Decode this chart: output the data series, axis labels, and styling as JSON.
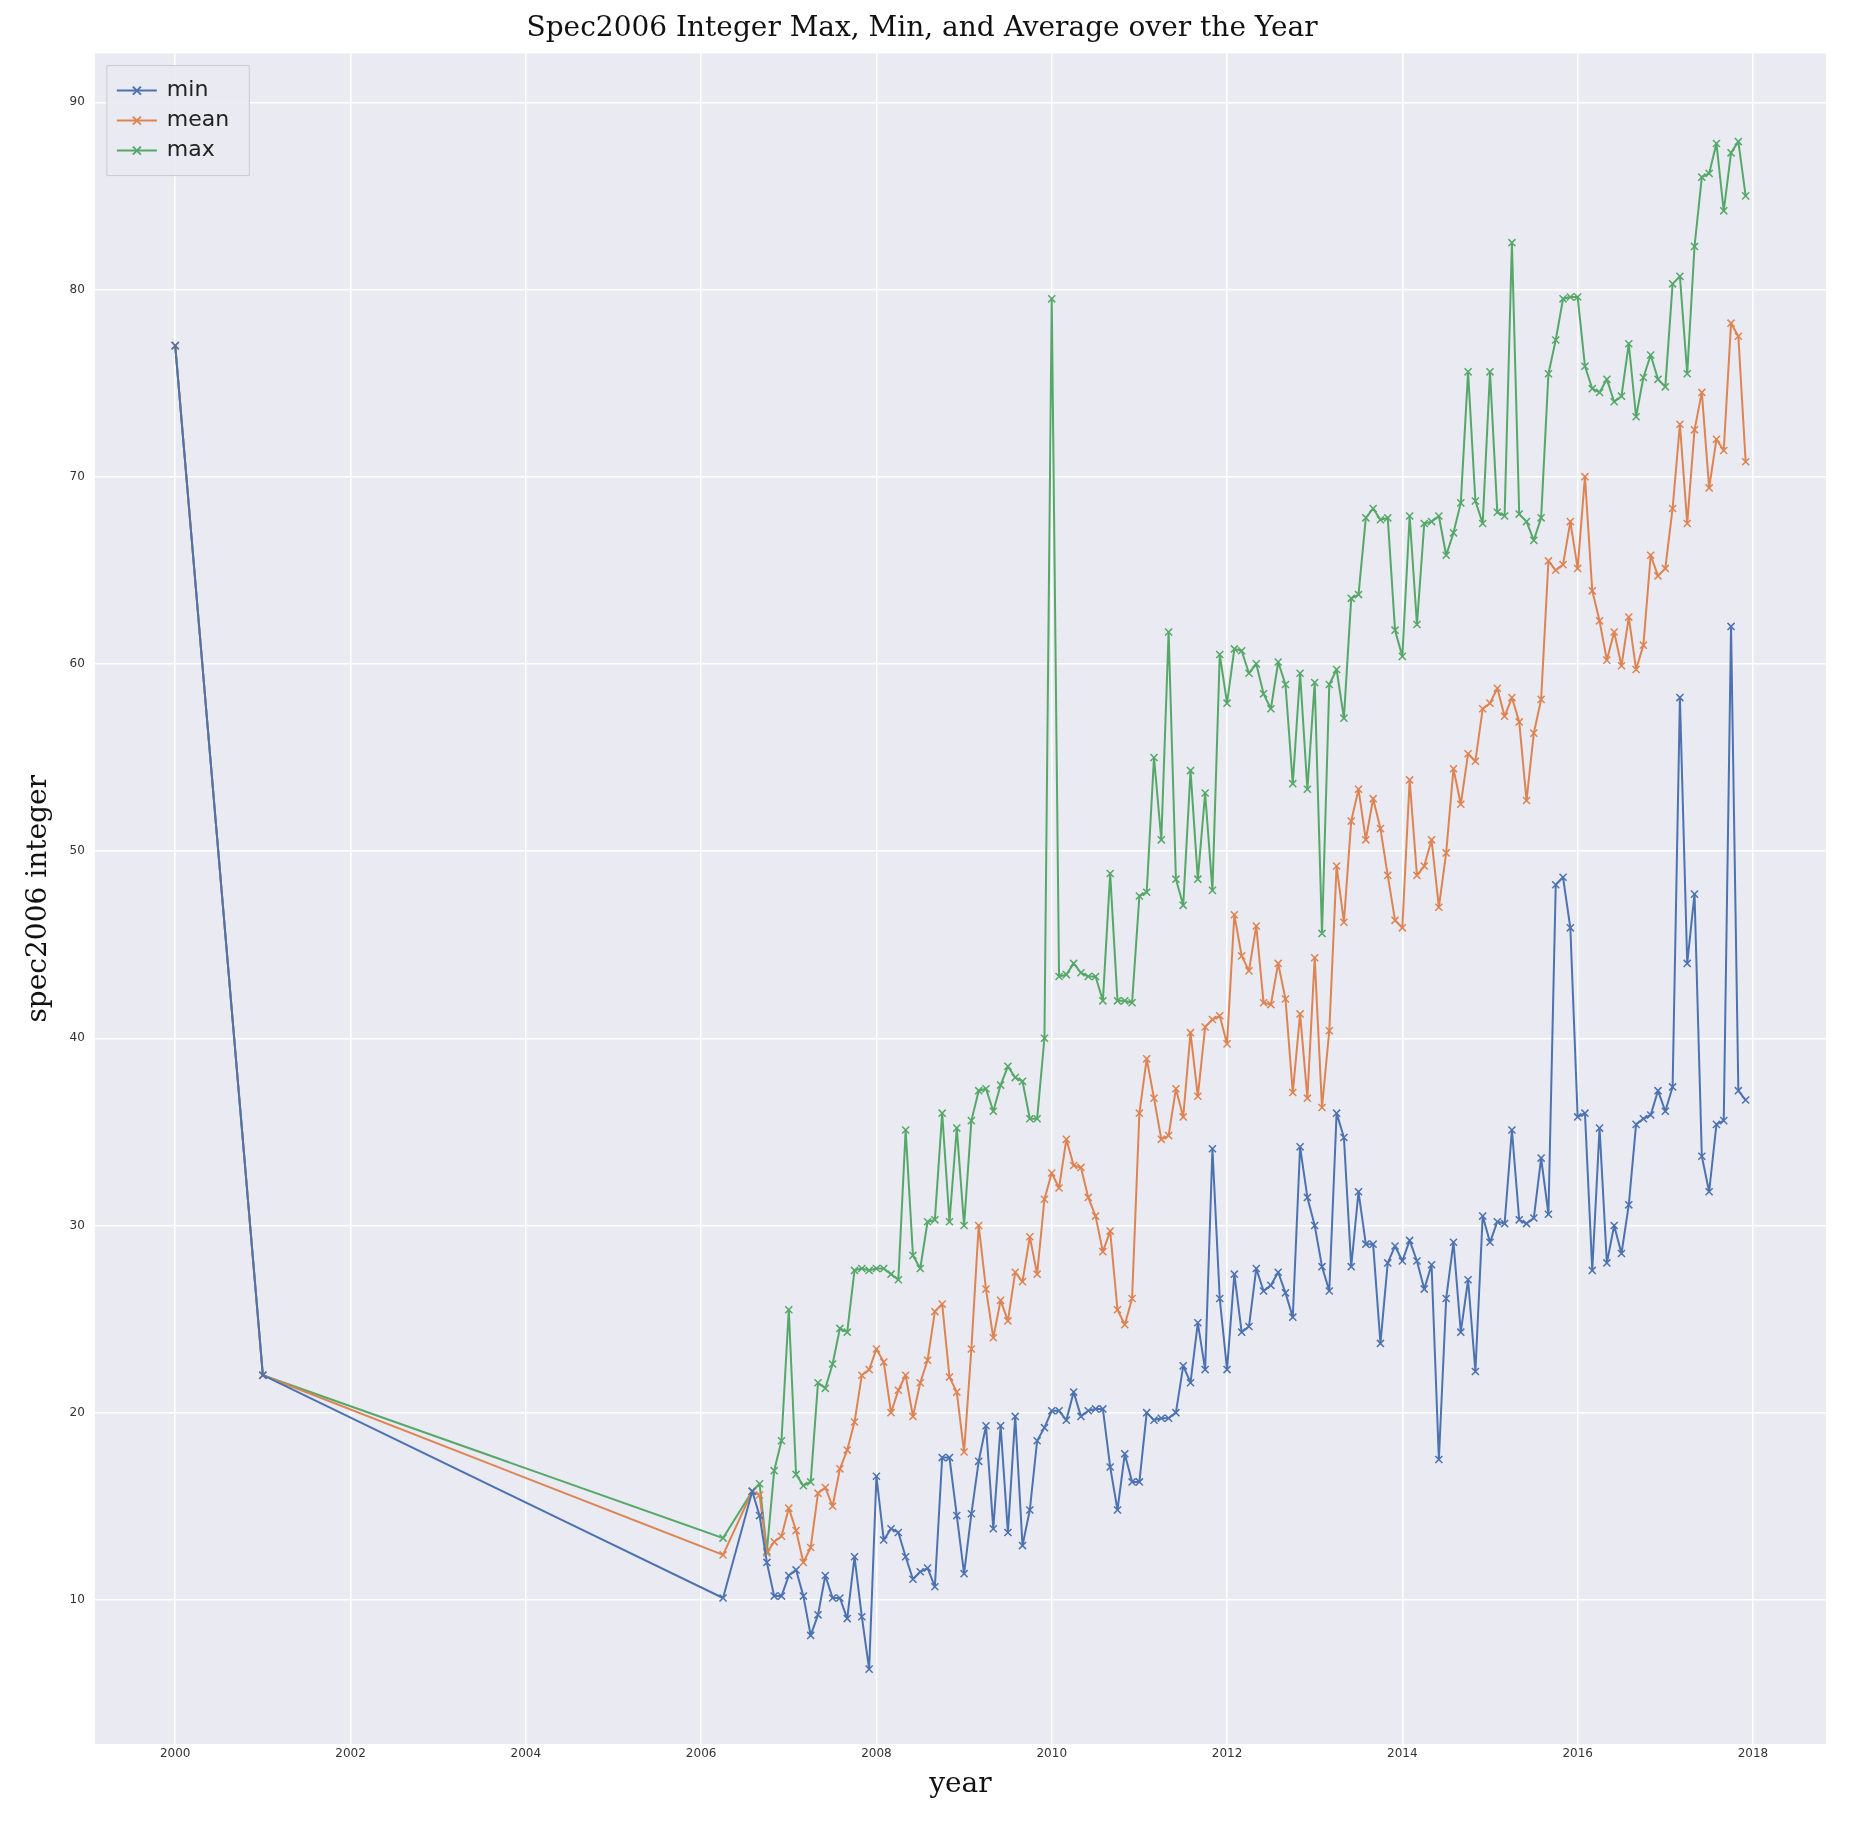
{
  "chart_data": {
    "type": "line",
    "title": "Spec2006 Integer Max, Min, and Average over the Year",
    "xlabel": "year",
    "ylabel": "spec2006 integer",
    "x": [
      "2000-01",
      "2001-01",
      "2006-04",
      "2006-08",
      "2006-09",
      "2006-10",
      "2006-11",
      "2006-12",
      "2007-01",
      "2007-02",
      "2007-03",
      "2007-04",
      "2007-05",
      "2007-06",
      "2007-07",
      "2007-08",
      "2007-09",
      "2007-10",
      "2007-11",
      "2007-12",
      "2008-01",
      "2008-02",
      "2008-03",
      "2008-04",
      "2008-05",
      "2008-06",
      "2008-07",
      "2008-08",
      "2008-09",
      "2008-10",
      "2008-11",
      "2008-12",
      "2009-01",
      "2009-02",
      "2009-03",
      "2009-04",
      "2009-05",
      "2009-06",
      "2009-07",
      "2009-08",
      "2009-09",
      "2009-10",
      "2009-11",
      "2009-12",
      "2010-01",
      "2010-02",
      "2010-03",
      "2010-04",
      "2010-05",
      "2010-06",
      "2010-07",
      "2010-08",
      "2010-09",
      "2010-10",
      "2010-11",
      "2010-12",
      "2011-01",
      "2011-02",
      "2011-03",
      "2011-04",
      "2011-05",
      "2011-06",
      "2011-07",
      "2011-08",
      "2011-09",
      "2011-10",
      "2011-11",
      "2011-12",
      "2012-01",
      "2012-02",
      "2012-03",
      "2012-04",
      "2012-05",
      "2012-06",
      "2012-07",
      "2012-08",
      "2012-09",
      "2012-10",
      "2012-11",
      "2012-12",
      "2013-01",
      "2013-02",
      "2013-03",
      "2013-04",
      "2013-05",
      "2013-06",
      "2013-07",
      "2013-08",
      "2013-09",
      "2013-10",
      "2013-11",
      "2013-12",
      "2014-01",
      "2014-02",
      "2014-03",
      "2014-04",
      "2014-05",
      "2014-06",
      "2014-07",
      "2014-08",
      "2014-09",
      "2014-10",
      "2014-11",
      "2014-12",
      "2015-01",
      "2015-02",
      "2015-03",
      "2015-04",
      "2015-05",
      "2015-06",
      "2015-07",
      "2015-08",
      "2015-09",
      "2015-10",
      "2015-11",
      "2015-12",
      "2016-01",
      "2016-02",
      "2016-03",
      "2016-04",
      "2016-05",
      "2016-06",
      "2016-07",
      "2016-08",
      "2016-09",
      "2016-10",
      "2016-11",
      "2016-12",
      "2017-01",
      "2017-02",
      "2017-03",
      "2017-04",
      "2017-05",
      "2017-06",
      "2017-07",
      "2017-08",
      "2017-09",
      "2017-10",
      "2017-11",
      "2017-12"
    ],
    "series": [
      {
        "name": "min",
        "color": "#4c72b0",
        "values": [
          77,
          22,
          10.1,
          15.8,
          14.5,
          12.0,
          10.2,
          10.2,
          11.3,
          11.6,
          10.2,
          8.1,
          9.2,
          11.3,
          10.1,
          10.1,
          9.0,
          12.3,
          9.1,
          6.3,
          16.6,
          13.2,
          13.8,
          13.6,
          12.3,
          11.1,
          11.5,
          11.7,
          10.7,
          17.6,
          17.6,
          14.5,
          11.4,
          14.6,
          17.4,
          19.3,
          13.8,
          19.3,
          13.6,
          19.8,
          12.9,
          14.8,
          18.5,
          19.2,
          20.1,
          20.1,
          19.6,
          21.1,
          19.8,
          20.1,
          20.2,
          20.2,
          17.1,
          14.8,
          17.8,
          16.3,
          16.3,
          20.0,
          19.6,
          19.7,
          19.7,
          20.0,
          22.5,
          21.6,
          24.8,
          22.3,
          34.1,
          26.1,
          22.3,
          27.4,
          24.3,
          24.6,
          27.7,
          26.5,
          26.8,
          27.5,
          26.4,
          25.1,
          34.2,
          31.5,
          30.0,
          27.8,
          26.5,
          36.0,
          34.7,
          27.8,
          31.8,
          29.0,
          29.0,
          23.7,
          28.0,
          28.9,
          28.1,
          29.2,
          28.1,
          26.6,
          27.9,
          17.5,
          26.1,
          29.1,
          24.3,
          27.1,
          22.2,
          30.5,
          29.1,
          30.2,
          30.1,
          35.1,
          30.3,
          30.1,
          30.4,
          33.6,
          30.6,
          48.2,
          48.6,
          45.9,
          35.8,
          36.0,
          27.6,
          35.2,
          28.0,
          30.0,
          28.5,
          31.1,
          35.4,
          35.7,
          35.9,
          37.2,
          36.1,
          37.4,
          58.2,
          44.0,
          47.7,
          33.7,
          31.8,
          35.4,
          35.6,
          62.0,
          37.2,
          36.7
        ]
      },
      {
        "name": "mean",
        "color": "#dd8452",
        "values": [
          77,
          22,
          12.4,
          15.8,
          15.6,
          12.5,
          13.1,
          13.4,
          14.9,
          13.7,
          12.0,
          12.8,
          15.7,
          16.0,
          15.0,
          17.0,
          18.0,
          19.5,
          22.0,
          22.3,
          23.4,
          22.7,
          20.0,
          21.2,
          22.0,
          19.8,
          21.6,
          22.8,
          25.4,
          25.8,
          21.9,
          21.1,
          17.9,
          23.4,
          30.0,
          26.6,
          24.0,
          26.0,
          24.9,
          27.5,
          27.0,
          29.4,
          27.4,
          31.4,
          32.8,
          32.0,
          34.6,
          33.2,
          33.1,
          31.5,
          30.5,
          28.6,
          29.7,
          25.5,
          24.7,
          26.1,
          36.0,
          38.9,
          36.8,
          34.6,
          34.8,
          37.3,
          35.8,
          40.3,
          36.9,
          40.6,
          41.0,
          41.2,
          39.7,
          46.6,
          44.4,
          43.6,
          46.0,
          41.9,
          41.8,
          44.0,
          42.1,
          37.1,
          41.3,
          36.8,
          44.3,
          36.3,
          40.4,
          49.2,
          46.2,
          51.6,
          53.3,
          50.6,
          52.8,
          51.2,
          48.7,
          46.3,
          45.9,
          53.8,
          48.7,
          49.2,
          50.6,
          47.0,
          49.9,
          54.4,
          52.5,
          55.2,
          54.8,
          57.6,
          57.9,
          58.7,
          57.2,
          58.2,
          56.9,
          52.7,
          56.3,
          58.1,
          65.5,
          65.0,
          65.3,
          67.6,
          65.1,
          70.0,
          63.9,
          62.3,
          60.2,
          61.7,
          59.9,
          62.5,
          59.7,
          61.0,
          65.8,
          64.7,
          65.1,
          68.3,
          72.8,
          67.5,
          72.5,
          74.5,
          69.4,
          72.0,
          71.4,
          78.2,
          77.5,
          70.8
        ]
      },
      {
        "name": "max",
        "color": "#55a868",
        "values": [
          77,
          22,
          13.3,
          15.8,
          16.2,
          12.6,
          16.9,
          18.5,
          25.5,
          16.7,
          16.1,
          16.3,
          21.6,
          21.3,
          22.6,
          24.5,
          24.3,
          27.6,
          27.7,
          27.6,
          27.7,
          27.7,
          27.4,
          27.1,
          35.1,
          28.4,
          27.7,
          30.2,
          30.3,
          36.0,
          30.2,
          35.2,
          30.0,
          35.6,
          37.2,
          37.3,
          36.1,
          37.5,
          38.5,
          37.9,
          37.7,
          35.7,
          35.7,
          40.0,
          79.5,
          43.3,
          43.4,
          44.0,
          43.5,
          43.3,
          43.3,
          42.0,
          48.8,
          42.0,
          42.0,
          41.9,
          47.6,
          47.8,
          55.0,
          50.6,
          61.7,
          48.5,
          47.1,
          54.3,
          48.5,
          53.1,
          47.9,
          60.5,
          57.9,
          60.8,
          60.7,
          59.5,
          60.0,
          58.4,
          57.6,
          60.1,
          58.9,
          53.6,
          59.5,
          53.3,
          59.0,
          45.6,
          58.9,
          59.7,
          57.1,
          63.5,
          63.7,
          67.8,
          68.3,
          67.7,
          67.8,
          61.8,
          60.4,
          67.9,
          62.1,
          67.5,
          67.6,
          67.9,
          65.8,
          67.0,
          68.6,
          75.6,
          68.7,
          67.5,
          75.6,
          68.1,
          67.9,
          82.5,
          68.0,
          67.6,
          66.6,
          67.8,
          75.5,
          77.3,
          79.5,
          79.6,
          79.6,
          75.9,
          74.7,
          74.5,
          75.2,
          74.0,
          74.3,
          77.1,
          73.2,
          75.3,
          76.5,
          75.2,
          74.8,
          80.3,
          80.7,
          75.5,
          82.3,
          86.0,
          86.2,
          87.8,
          84.2,
          87.3,
          87.9,
          85.0
        ]
      }
    ],
    "xlim": [
      "1999-02",
      "2018-11"
    ],
    "xticks": [
      "2000",
      "2002",
      "2004",
      "2006",
      "2008",
      "2010",
      "2012",
      "2014",
      "2016",
      "2018"
    ],
    "ylim": [
      2.3,
      92.6
    ],
    "yticks": [
      10,
      20,
      30,
      40,
      50,
      60,
      70,
      80,
      90
    ],
    "grid": true,
    "legend": "top left",
    "marker": "cross",
    "line_style": "solid"
  }
}
